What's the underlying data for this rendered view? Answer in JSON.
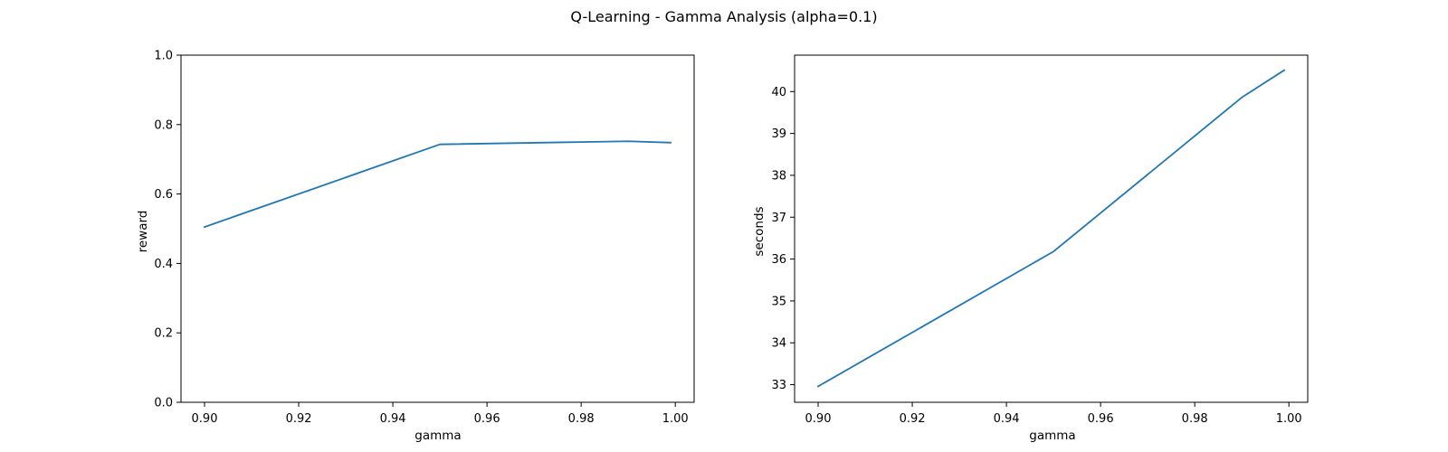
{
  "figure": {
    "suptitle": "Q-Learning - Gamma Analysis (alpha=0.1)"
  },
  "style": {
    "line_color": "#1f77b4",
    "axis_color": "#000000",
    "background": "#ffffff"
  },
  "chart_data": [
    {
      "type": "line",
      "title": "",
      "xlabel": "gamma",
      "ylabel": "reward",
      "xlim": [
        0.895,
        1.004
      ],
      "ylim": [
        0.0,
        1.0
      ],
      "xticks": [
        0.9,
        0.92,
        0.94,
        0.96,
        0.98,
        1.0
      ],
      "xtick_labels": [
        "0.90",
        "0.92",
        "0.94",
        "0.96",
        "0.98",
        "1.00"
      ],
      "yticks": [
        0.0,
        0.2,
        0.4,
        0.6,
        0.8,
        1.0
      ],
      "ytick_labels": [
        "0.0",
        "0.2",
        "0.4",
        "0.6",
        "0.8",
        "1.0"
      ],
      "grid": false,
      "series": [
        {
          "x": [
            0.9,
            0.95,
            0.99,
            0.999
          ],
          "y": [
            0.505,
            0.743,
            0.752,
            0.748
          ]
        }
      ]
    },
    {
      "type": "line",
      "title": "",
      "xlabel": "gamma",
      "ylabel": "seconds",
      "xlim": [
        0.895,
        1.004
      ],
      "ylim": [
        32.58,
        40.87
      ],
      "xticks": [
        0.9,
        0.92,
        0.94,
        0.96,
        0.98,
        1.0
      ],
      "xtick_labels": [
        "0.90",
        "0.92",
        "0.94",
        "0.96",
        "0.98",
        "1.00"
      ],
      "yticks": [
        33,
        34,
        35,
        36,
        37,
        38,
        39,
        40
      ],
      "ytick_labels": [
        "33",
        "34",
        "35",
        "36",
        "37",
        "38",
        "39",
        "40"
      ],
      "grid": false,
      "series": [
        {
          "x": [
            0.9,
            0.95,
            0.99,
            0.999
          ],
          "y": [
            32.96,
            36.18,
            39.86,
            40.51
          ]
        }
      ]
    }
  ]
}
